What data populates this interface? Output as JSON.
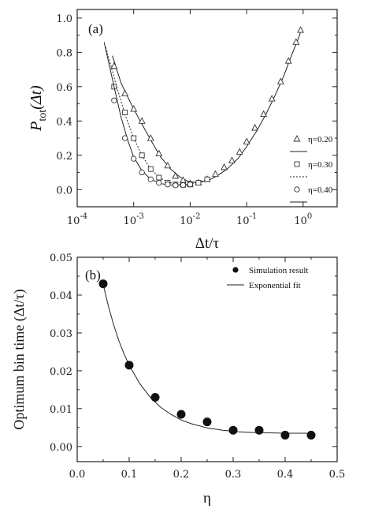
{
  "chart_data": [
    {
      "panel_label": "(a)",
      "type": "line",
      "xlabel": "Δt/τ",
      "ylabel_main": "P",
      "ylabel_sub": "tot",
      "ylabel_arg": "(Δt)",
      "xscale": "log",
      "xlim": [
        0.0001,
        4
      ],
      "ylim": [
        -0.1,
        1.05
      ],
      "xticks": [
        {
          "value": 0.0001,
          "base": "10",
          "exp": "-4"
        },
        {
          "value": 0.001,
          "base": "10",
          "exp": "-3"
        },
        {
          "value": 0.01,
          "base": "10",
          "exp": "-2"
        },
        {
          "value": 0.1,
          "base": "10",
          "exp": "-1"
        },
        {
          "value": 1,
          "base": "10",
          "exp": "0"
        }
      ],
      "yticks": [
        {
          "value": 0.0,
          "label": "0.0"
        },
        {
          "value": 0.2,
          "label": "0.2"
        },
        {
          "value": 0.4,
          "label": "0.4"
        },
        {
          "value": 0.6,
          "label": "0.6"
        },
        {
          "value": 0.8,
          "label": "0.8"
        },
        {
          "value": 1.0,
          "label": "1.0"
        }
      ],
      "legend_placement": "right",
      "series": [
        {
          "name": "η=0.20",
          "marker": "triangle",
          "line": "solid",
          "x": [
            0.00045,
            0.0007,
            0.001,
            0.0014,
            0.002,
            0.0028,
            0.004,
            0.0055,
            0.0075,
            0.01,
            0.014,
            0.02,
            0.028,
            0.04,
            0.055,
            0.075,
            0.1,
            0.14,
            0.2,
            0.28,
            0.4,
            0.55,
            0.75,
            0.9
          ],
          "y": [
            0.72,
            0.56,
            0.47,
            0.4,
            0.3,
            0.21,
            0.14,
            0.08,
            0.055,
            0.035,
            0.04,
            0.06,
            0.09,
            0.13,
            0.17,
            0.22,
            0.28,
            0.36,
            0.44,
            0.53,
            0.63,
            0.75,
            0.86,
            0.93
          ],
          "fit_x": [
            0.00042,
            0.0006,
            0.0009,
            0.0013,
            0.002,
            0.003,
            0.0045,
            0.0065,
            0.009,
            0.013,
            0.02,
            0.03,
            0.045,
            0.07,
            0.1,
            0.15,
            0.22,
            0.32,
            0.45,
            0.62,
            0.8,
            0.95
          ],
          "fit_y": [
            0.78,
            0.62,
            0.5,
            0.4,
            0.29,
            0.19,
            0.12,
            0.075,
            0.05,
            0.04,
            0.05,
            0.08,
            0.12,
            0.18,
            0.25,
            0.34,
            0.44,
            0.55,
            0.66,
            0.78,
            0.87,
            0.94
          ]
        },
        {
          "name": "η=0.30",
          "marker": "square",
          "line": "dotted",
          "x": [
            0.00045,
            0.0007,
            0.001,
            0.0014,
            0.002,
            0.0028,
            0.004,
            0.0055,
            0.0075,
            0.01,
            0.014,
            0.02
          ],
          "y": [
            0.6,
            0.45,
            0.3,
            0.2,
            0.12,
            0.07,
            0.04,
            0.03,
            0.028,
            0.03,
            0.04,
            0.06
          ],
          "fit_x": [
            0.00032,
            0.0005,
            0.0007,
            0.001,
            0.0014,
            0.002,
            0.003,
            0.0045,
            0.0065,
            0.009,
            0.013,
            0.02
          ],
          "fit_y": [
            0.83,
            0.6,
            0.44,
            0.3,
            0.2,
            0.12,
            0.065,
            0.04,
            0.032,
            0.03,
            0.04,
            0.06
          ]
        },
        {
          "name": "η=0.40",
          "marker": "circle",
          "line": "solid",
          "x": [
            0.00045,
            0.0007,
            0.001,
            0.0014,
            0.002,
            0.0028,
            0.004,
            0.0055,
            0.0075,
            0.01
          ],
          "y": [
            0.52,
            0.3,
            0.18,
            0.1,
            0.06,
            0.04,
            0.03,
            0.025,
            0.026,
            0.03
          ],
          "fit_x": [
            0.0003,
            0.00045,
            0.0006,
            0.0008,
            0.001,
            0.0014,
            0.002,
            0.003,
            0.0045,
            0.0065,
            0.009
          ],
          "fit_y": [
            0.86,
            0.6,
            0.42,
            0.28,
            0.19,
            0.11,
            0.06,
            0.035,
            0.027,
            0.026,
            0.03
          ]
        }
      ]
    },
    {
      "panel_label": "(b)",
      "type": "scatter",
      "xlabel": "η",
      "ylabel": "Optimum bin time (Δt/τ)",
      "xlim": [
        0.0,
        0.5
      ],
      "ylim": [
        -0.004,
        0.05
      ],
      "xticks": [
        {
          "value": 0.0,
          "label": "0.0"
        },
        {
          "value": 0.1,
          "label": "0.1"
        },
        {
          "value": 0.2,
          "label": "0.2"
        },
        {
          "value": 0.3,
          "label": "0.3"
        },
        {
          "value": 0.4,
          "label": "0.4"
        },
        {
          "value": 0.5,
          "label": "0.5"
        }
      ],
      "yticks": [
        {
          "value": 0.0,
          "label": "0.00"
        },
        {
          "value": 0.01,
          "label": "0.01"
        },
        {
          "value": 0.02,
          "label": "0.02"
        },
        {
          "value": 0.03,
          "label": "0.03"
        },
        {
          "value": 0.04,
          "label": "0.04"
        },
        {
          "value": 0.05,
          "label": "0.05"
        }
      ],
      "legend_placement": "top-right",
      "series": [
        {
          "name": "Simulation result",
          "marker": "filled-circle",
          "x": [
            0.05,
            0.1,
            0.15,
            0.2,
            0.25,
            0.3,
            0.35,
            0.4,
            0.45
          ],
          "y": [
            0.043,
            0.0215,
            0.013,
            0.0085,
            0.0065,
            0.0043,
            0.0043,
            0.003,
            0.003
          ]
        },
        {
          "name": "Exponential fit",
          "line": "solid",
          "x": [
            0.05,
            0.06,
            0.07,
            0.08,
            0.09,
            0.1,
            0.12,
            0.14,
            0.16,
            0.18,
            0.2,
            0.22,
            0.25,
            0.28,
            0.31,
            0.34,
            0.37,
            0.4,
            0.43,
            0.45
          ],
          "y": [
            0.0428,
            0.0371,
            0.0322,
            0.028,
            0.0245,
            0.0215,
            0.0167,
            0.0131,
            0.0104,
            0.0085,
            0.007,
            0.006,
            0.0049,
            0.0043,
            0.0039,
            0.0037,
            0.0036,
            0.0035,
            0.0035,
            0.0035
          ]
        }
      ]
    }
  ]
}
